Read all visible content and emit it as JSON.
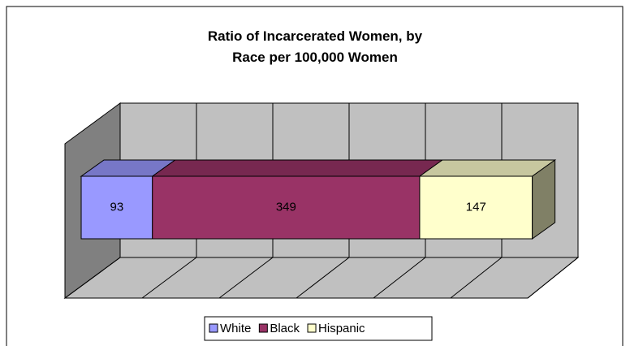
{
  "chart_data": {
    "type": "bar",
    "orientation": "horizontal",
    "stacked": true,
    "three_d": true,
    "title": "Ratio of Incarcerated Women, by Race per 100,000 Women",
    "categories": [
      null
    ],
    "series": [
      {
        "name": "White",
        "color": "#9999ff",
        "values": [
          93
        ]
      },
      {
        "name": "Black",
        "color": "#993366",
        "values": [
          349
        ]
      },
      {
        "name": "Hispanic",
        "color": "#ffffcc",
        "values": [
          147
        ]
      }
    ],
    "xlim": [
      0,
      600
    ],
    "xticks": [
      0,
      100,
      200,
      300,
      400,
      500,
      600
    ],
    "grid": true,
    "legend": "bottom"
  }
}
